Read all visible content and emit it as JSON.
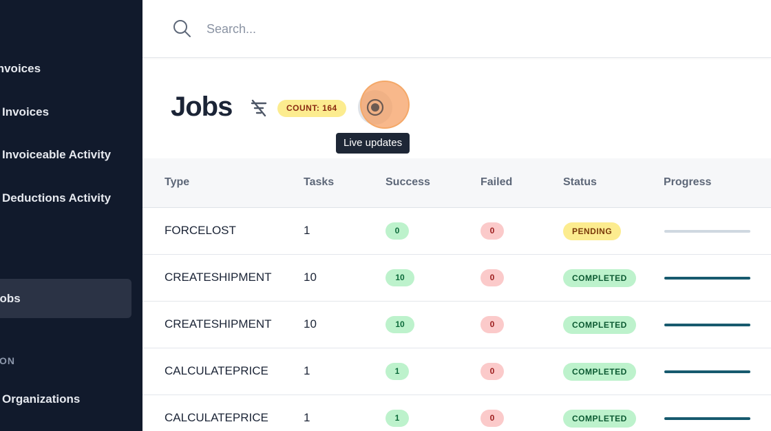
{
  "sidebar": {
    "items": [
      {
        "label": "Invoices"
      },
      {
        "label": "Invoices"
      },
      {
        "label": "Invoiceable Activity"
      },
      {
        "label": "Deductions Activity"
      },
      {
        "label": "Jobs",
        "active": true
      },
      {
        "label": "Organizations"
      }
    ],
    "section_label": "ON"
  },
  "search": {
    "placeholder": "Search..."
  },
  "page": {
    "title": "Jobs",
    "count_badge": "COUNT: 164",
    "live_tooltip": "Live updates"
  },
  "table": {
    "headers": [
      "Type",
      "Tasks",
      "Success",
      "Failed",
      "Status",
      "Progress"
    ],
    "rows": [
      {
        "type": "FORCELOST",
        "tasks": "1",
        "success": "0",
        "failed": "0",
        "status": "PENDING",
        "progress": 0
      },
      {
        "type": "CREATESHIPMENT",
        "tasks": "10",
        "success": "10",
        "failed": "0",
        "status": "COMPLETED",
        "progress": 1
      },
      {
        "type": "CREATESHIPMENT",
        "tasks": "10",
        "success": "10",
        "failed": "0",
        "status": "COMPLETED",
        "progress": 1
      },
      {
        "type": "CALCULATEPRICE",
        "tasks": "1",
        "success": "1",
        "failed": "0",
        "status": "COMPLETED",
        "progress": 1
      },
      {
        "type": "CALCULATEPRICE",
        "tasks": "1",
        "success": "1",
        "failed": "0",
        "status": "COMPLETED",
        "progress": 1
      }
    ]
  },
  "colors": {
    "sidebar_bg": "#111a2c",
    "accent_progress": "#175a6e",
    "badge_yellow": "#fcec8f",
    "live_highlight": "#f4a868"
  }
}
